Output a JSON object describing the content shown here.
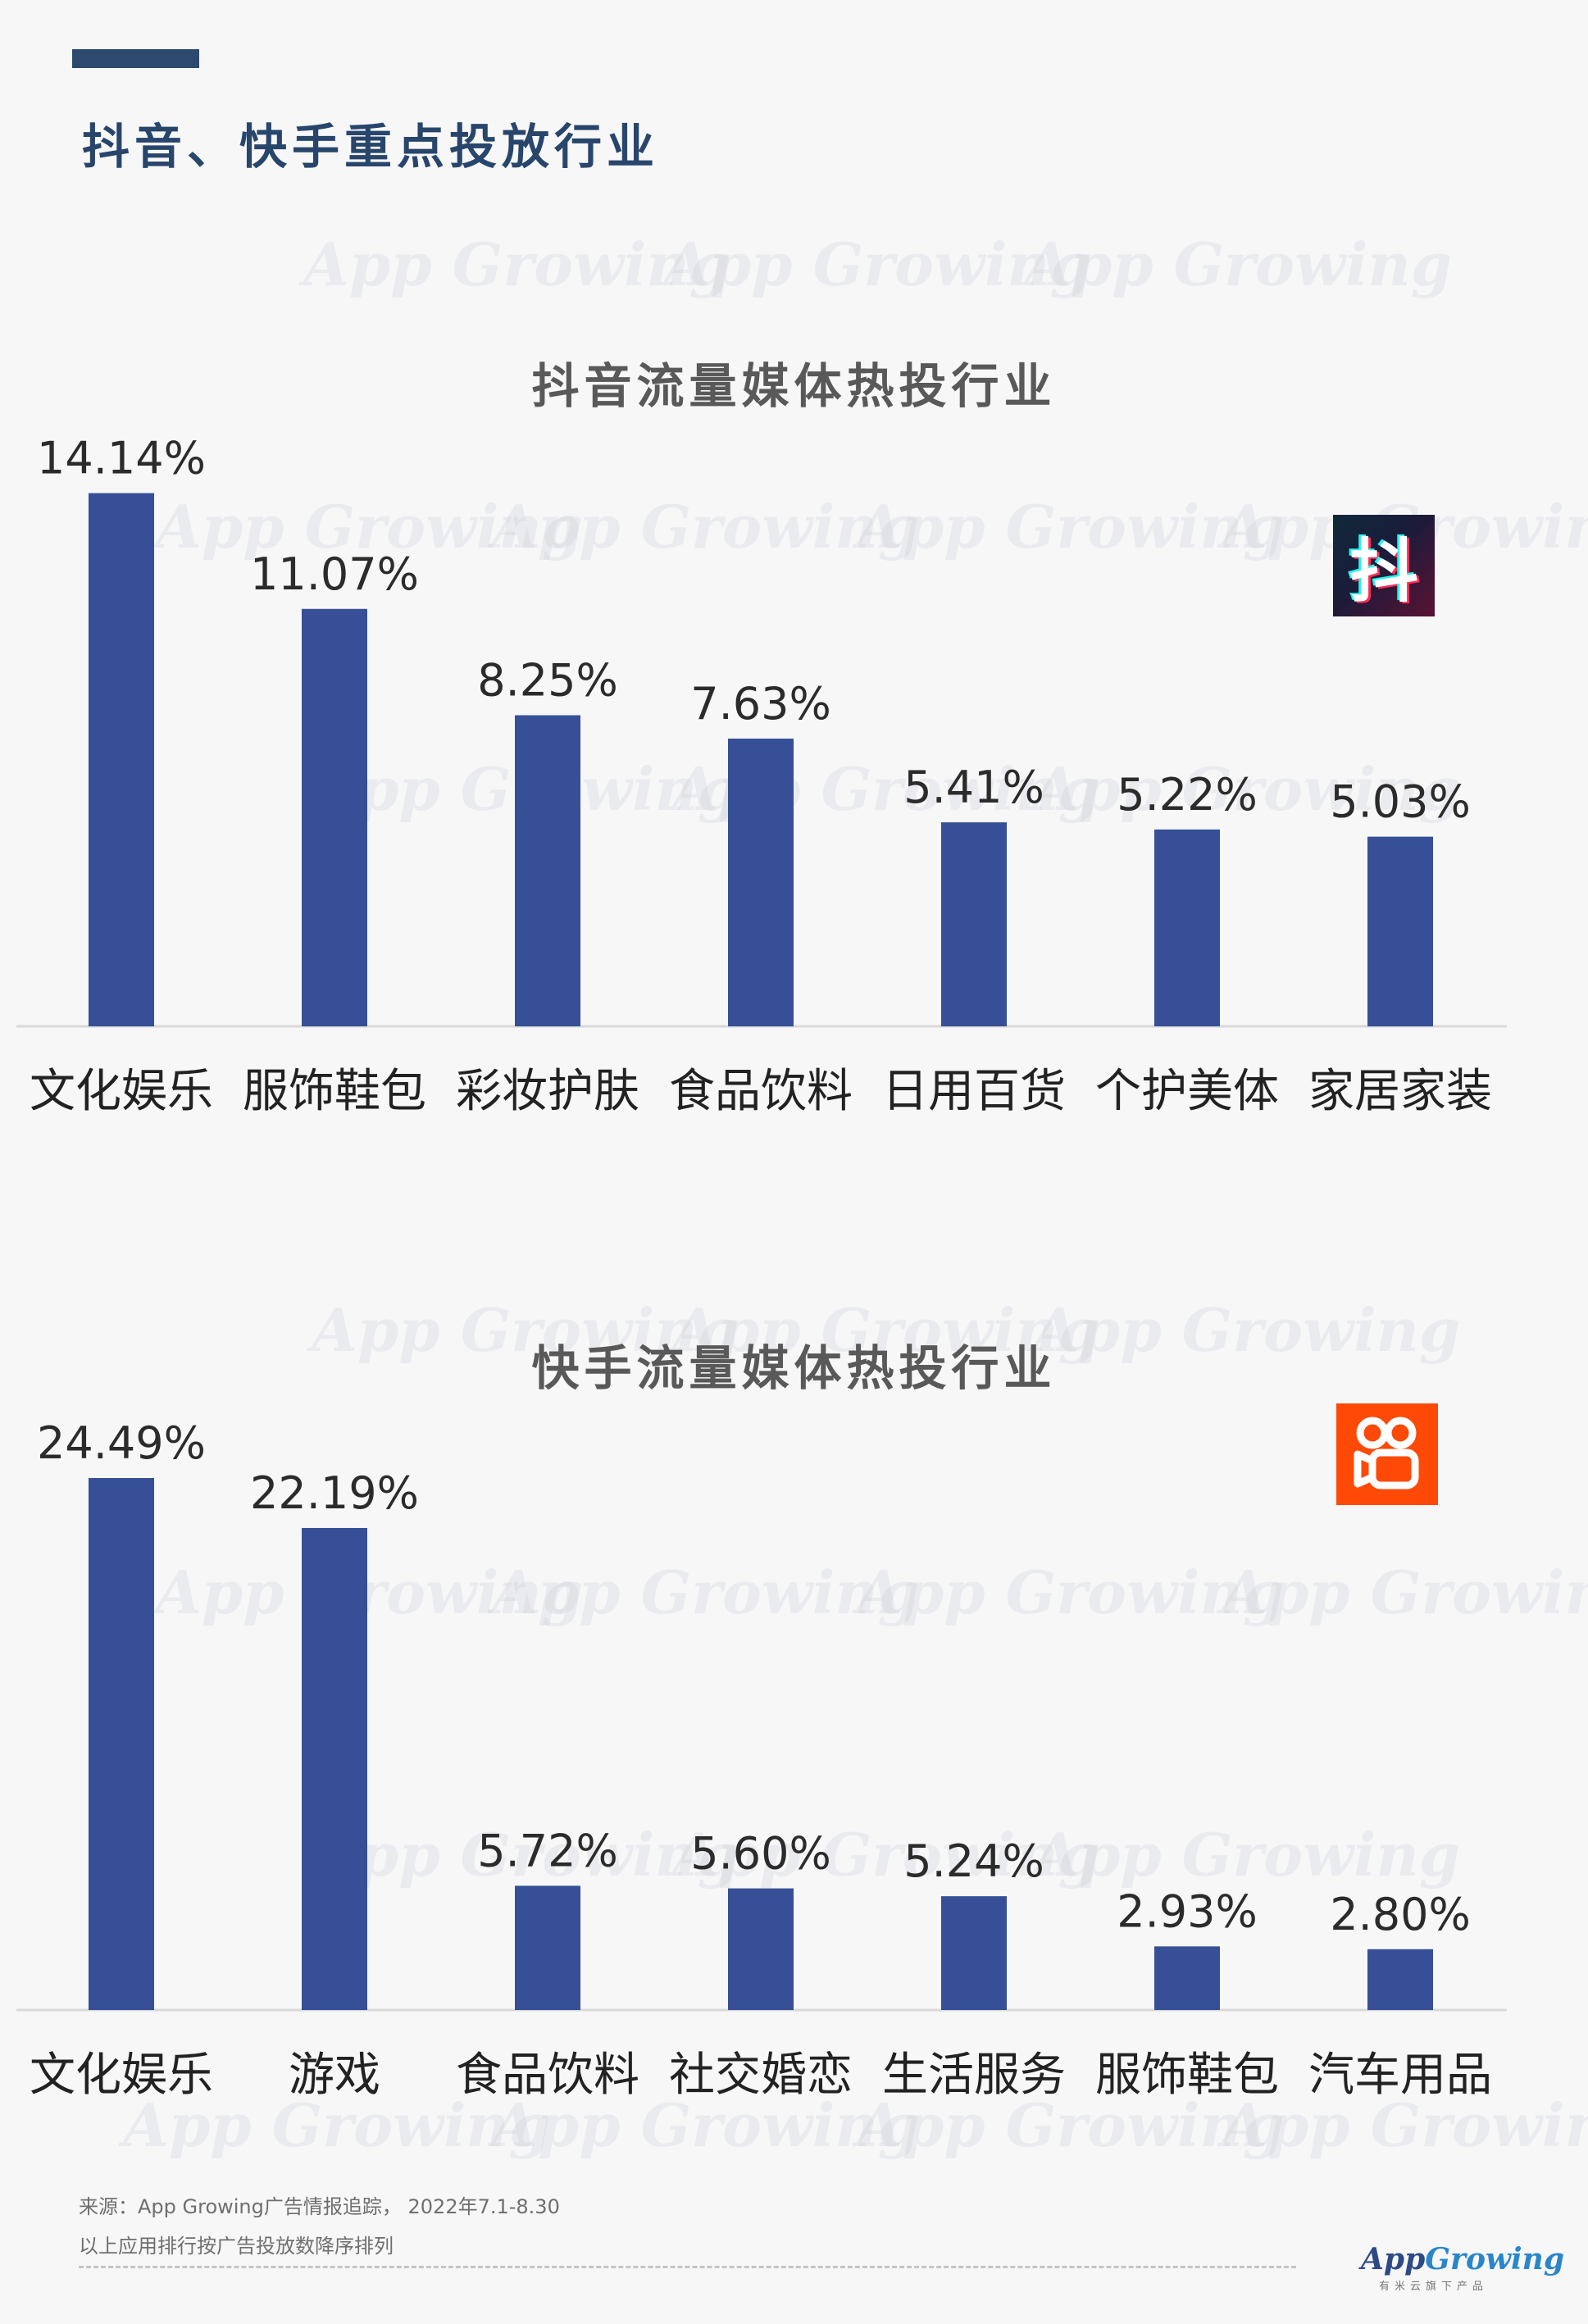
{
  "page": {
    "title": "抖音、快手重点投放行业",
    "watermark": "App Growing"
  },
  "logos": {
    "douyin": {
      "glyph": "抖",
      "icon": "douyin-logo-icon"
    },
    "kuaishou": {
      "icon": "kuaishou-logo-icon",
      "color": "#ff4906"
    }
  },
  "footer": {
    "source": "来源：App Growing广告情报追踪， 2022年7.1-8.30",
    "note": "以上应用排行按广告投放数降序排列",
    "brand_left": "App",
    "brand_right": "Growing",
    "brand_sub": "有米云旗下产品"
  },
  "colors": {
    "bar": "#364f96",
    "title": "#28466b",
    "accent": "#2c4a6e"
  },
  "chart_data": [
    {
      "type": "bar",
      "title": "抖音流量媒体热投行业",
      "categories": [
        "文化娱乐",
        "服饰鞋包",
        "彩妆护肤",
        "食品饮料",
        "日用百货",
        "个护美体",
        "家居家装"
      ],
      "values": [
        14.14,
        11.07,
        8.25,
        7.63,
        5.41,
        5.22,
        5.03
      ],
      "value_labels": [
        "14.14%",
        "11.07%",
        "8.25%",
        "7.63%",
        "5.41%",
        "5.22%",
        "5.03%"
      ],
      "grid": false,
      "legend": false
    },
    {
      "type": "bar",
      "title": "快手流量媒体热投行业",
      "categories": [
        "文化娱乐",
        "游戏",
        "食品饮料",
        "社交婚恋",
        "生活服务",
        "服饰鞋包",
        "汽车用品"
      ],
      "values": [
        24.49,
        22.19,
        5.72,
        5.6,
        5.24,
        2.93,
        2.8
      ],
      "value_labels": [
        "24.49%",
        "22.19%",
        "5.72%",
        "5.60%",
        "5.24%",
        "2.93%",
        "2.80%"
      ],
      "grid": false,
      "legend": false
    }
  ]
}
